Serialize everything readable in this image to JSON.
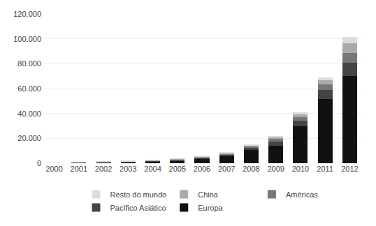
{
  "chart_data": {
    "type": "bar",
    "stacked": true,
    "categories": [
      "2000",
      "2001",
      "2002",
      "2003",
      "2004",
      "2005",
      "2006",
      "2007",
      "2008",
      "2009",
      "2010",
      "2011",
      "2012"
    ],
    "series": [
      {
        "name": "Europa",
        "color": "#111111",
        "values": [
          200,
          500,
          600,
          900,
          1200,
          1900,
          3500,
          5500,
          10500,
          13900,
          29500,
          51700,
          70000
        ]
      },
      {
        "name": "Pacífico Asiático",
        "color": "#444444",
        "values": [
          100,
          200,
          350,
          400,
          600,
          900,
          1000,
          1400,
          2000,
          3500,
          4500,
          7000,
          11000
        ]
      },
      {
        "name": "Américas",
        "color": "#777777",
        "values": [
          50,
          100,
          150,
          200,
          300,
          400,
          500,
          700,
          1000,
          2000,
          3000,
          4500,
          7500
        ]
      },
      {
        "name": "China",
        "color": "#aaaaaa",
        "values": [
          10,
          50,
          100,
          150,
          200,
          300,
          400,
          500,
          800,
          1500,
          2500,
          3500,
          8000
        ]
      },
      {
        "name": "Resto do mundo",
        "color": "#dddddd",
        "values": [
          20,
          60,
          100,
          150,
          200,
          300,
          350,
          500,
          700,
          1100,
          1500,
          2500,
          5000
        ]
      }
    ],
    "ylim": [
      0,
      120000
    ],
    "yticks": [
      0,
      {
        "value": 20000,
        "label": "20.000"
      },
      {
        "value": 40000,
        "label": "40.000"
      },
      {
        "value": 60000,
        "label": "60.000"
      },
      {
        "value": 80000,
        "label": "80.000"
      },
      {
        "value": 100000,
        "label": "100.000"
      },
      {
        "value": 120000,
        "label": "120.000"
      }
    ],
    "grid": true,
    "legend": "bottom"
  }
}
